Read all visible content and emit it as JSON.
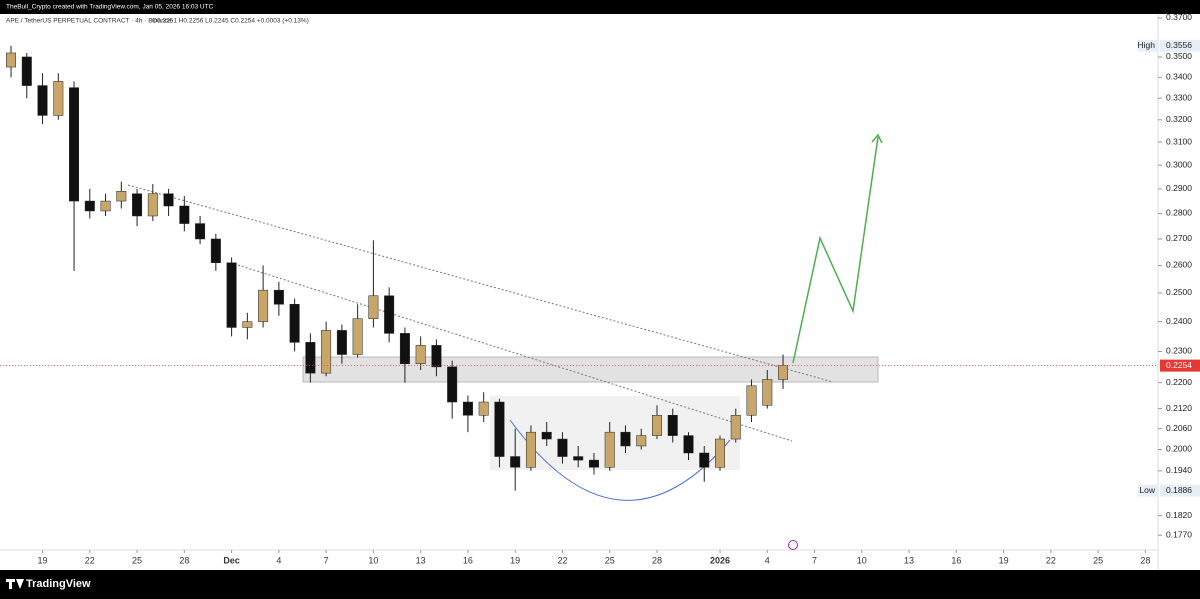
{
  "chart_data": {
    "type": "candlestick",
    "credit": "TheBull_Crypto created with TradingView.com, Jan 05, 2026 16:03 UTC",
    "title": "APE / TetherUS PERPETUAL CONTRACT · 4h · Binance",
    "ohlc_legend": "O0.2251 H0.2256 L0.2245 C0.2254 +0.0003 (+0.13%)",
    "brand": "TradingView",
    "log_scale": true,
    "grid": false,
    "up_color": "#c8a66a",
    "down_color": "#111111",
    "x": [
      -2,
      -1,
      0,
      1,
      2,
      3,
      4,
      5,
      6,
      7,
      8,
      9,
      10,
      11,
      12,
      13,
      14,
      15,
      16,
      17,
      18,
      19,
      20,
      21,
      22,
      23,
      24,
      25,
      26,
      27,
      28,
      29,
      30,
      31,
      32,
      33,
      34,
      35,
      36,
      37,
      38,
      39,
      40,
      41,
      42,
      43,
      44,
      45,
      46,
      47
    ],
    "open": [
      0.345,
      0.35,
      0.336,
      0.322,
      0.335,
      0.285,
      0.281,
      0.285,
      0.288,
      0.279,
      0.288,
      0.283,
      0.276,
      0.27,
      0.261,
      0.238,
      0.24,
      0.251,
      0.246,
      0.233,
      0.223,
      0.237,
      0.229,
      0.241,
      0.249,
      0.236,
      0.226,
      0.232,
      0.225,
      0.214,
      0.21,
      0.214,
      0.198,
      0.195,
      0.205,
      0.203,
      0.198,
      0.197,
      0.195,
      0.205,
      0.201,
      0.204,
      0.21,
      0.204,
      0.199,
      0.195,
      0.203,
      0.21,
      0.213,
      0.221
    ],
    "high": [
      0.3556,
      0.352,
      0.342,
      0.342,
      0.338,
      0.29,
      0.288,
      0.293,
      0.29,
      0.292,
      0.29,
      0.287,
      0.279,
      0.272,
      0.263,
      0.243,
      0.26,
      0.254,
      0.248,
      0.236,
      0.24,
      0.239,
      0.246,
      0.2695,
      0.252,
      0.238,
      0.235,
      0.234,
      0.227,
      0.216,
      0.217,
      0.215,
      0.206,
      0.207,
      0.208,
      0.205,
      0.201,
      0.199,
      0.208,
      0.207,
      0.206,
      0.213,
      0.212,
      0.205,
      0.201,
      0.204,
      0.212,
      0.221,
      0.224,
      0.229
    ],
    "low": [
      0.34,
      0.33,
      0.318,
      0.32,
      0.258,
      0.278,
      0.279,
      0.282,
      0.275,
      0.277,
      0.279,
      0.273,
      0.268,
      0.258,
      0.235,
      0.234,
      0.238,
      0.242,
      0.23,
      0.22,
      0.222,
      0.226,
      0.228,
      0.238,
      0.233,
      0.22,
      0.224,
      0.222,
      0.209,
      0.205,
      0.208,
      0.195,
      0.1886,
      0.194,
      0.201,
      0.196,
      0.195,
      0.193,
      0.194,
      0.199,
      0.2,
      0.203,
      0.202,
      0.197,
      0.191,
      0.194,
      0.202,
      0.208,
      0.212,
      0.218
    ],
    "close": [
      0.352,
      0.336,
      0.322,
      0.338,
      0.285,
      0.281,
      0.285,
      0.289,
      0.279,
      0.288,
      0.283,
      0.276,
      0.27,
      0.261,
      0.238,
      0.24,
      0.251,
      0.246,
      0.233,
      0.223,
      0.237,
      0.229,
      0.241,
      0.249,
      0.236,
      0.226,
      0.232,
      0.225,
      0.214,
      0.21,
      0.214,
      0.198,
      0.195,
      0.205,
      0.203,
      0.198,
      0.197,
      0.195,
      0.205,
      0.201,
      0.204,
      0.21,
      0.204,
      0.199,
      0.195,
      0.203,
      0.21,
      0.219,
      0.221,
      0.2254
    ],
    "xlim": [
      -2.7,
      70.8
    ],
    "xticks": [
      {
        "value": 0,
        "label": "19"
      },
      {
        "value": 3,
        "label": "22"
      },
      {
        "value": 6,
        "label": "25"
      },
      {
        "value": 9,
        "label": "28"
      },
      {
        "value": 12,
        "label": "Dec"
      },
      {
        "value": 15,
        "label": "4"
      },
      {
        "value": 18,
        "label": "7"
      },
      {
        "value": 21,
        "label": "10"
      },
      {
        "value": 24,
        "label": "13"
      },
      {
        "value": 27,
        "label": "16"
      },
      {
        "value": 30,
        "label": "19"
      },
      {
        "value": 33,
        "label": "22"
      },
      {
        "value": 36,
        "label": "25"
      },
      {
        "value": 39,
        "label": "28"
      },
      {
        "value": 43,
        "label": "2026"
      },
      {
        "value": 46,
        "label": "4"
      },
      {
        "value": 49,
        "label": "7"
      },
      {
        "value": 52,
        "label": "10"
      },
      {
        "value": 55,
        "label": "13"
      },
      {
        "value": 58,
        "label": "16"
      },
      {
        "value": 61,
        "label": "19"
      },
      {
        "value": 64,
        "label": "22"
      },
      {
        "value": 67,
        "label": "25"
      },
      {
        "value": 70,
        "label": "28"
      }
    ],
    "ylim": [
      0.1733,
      0.3721
    ],
    "yticks": [
      {
        "value": 0.37,
        "label": "0.3700"
      },
      {
        "value": 0.35,
        "label": "0.3500"
      },
      {
        "value": 0.34,
        "label": "0.3400"
      },
      {
        "value": 0.33,
        "label": "0.3300"
      },
      {
        "value": 0.32,
        "label": "0.3200"
      },
      {
        "value": 0.31,
        "label": "0.3100"
      },
      {
        "value": 0.3,
        "label": "0.3000"
      },
      {
        "value": 0.29,
        "label": "0.2900"
      },
      {
        "value": 0.28,
        "label": "0.2800"
      },
      {
        "value": 0.27,
        "label": "0.2700"
      },
      {
        "value": 0.26,
        "label": "0.2600"
      },
      {
        "value": 0.25,
        "label": "0.2500"
      },
      {
        "value": 0.24,
        "label": "0.2400"
      },
      {
        "value": 0.23,
        "label": "0.2300"
      },
      {
        "value": 0.22,
        "label": "0.2200"
      },
      {
        "value": 0.212,
        "label": "0.2120"
      },
      {
        "value": 0.206,
        "label": "0.2060"
      },
      {
        "value": 0.2,
        "label": "0.2000"
      },
      {
        "value": 0.194,
        "label": "0.1940"
      },
      {
        "value": 0.182,
        "label": "0.1820"
      },
      {
        "value": 0.177,
        "label": "0.1770"
      }
    ],
    "markers": [
      {
        "name": "High",
        "value": 0.3556,
        "label": "0.3556"
      },
      {
        "value": 0.2254,
        "label": "0.2254",
        "color": "#e53935"
      },
      {
        "name": "Low",
        "value": 0.1886,
        "label": "0.1886"
      }
    ]
  }
}
